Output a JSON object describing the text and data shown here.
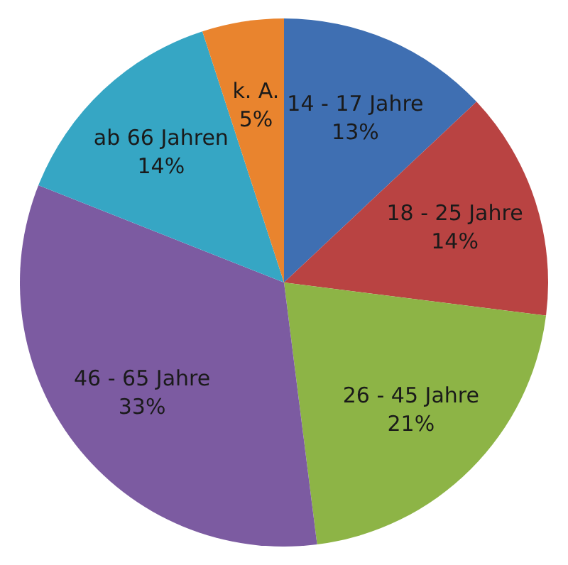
{
  "chart_data": {
    "type": "pie",
    "categories": [
      "14 - 17 Jahre",
      "18 - 25 Jahre",
      "26 - 45 Jahre",
      "46 - 65 Jahre",
      "ab 66 Jahren",
      "k. A."
    ],
    "values": [
      13,
      14,
      21,
      33,
      14,
      5
    ],
    "value_labels": [
      "13%",
      "14%",
      "21%",
      "33%",
      "14%",
      "5%"
    ],
    "colors": [
      "#3f6fb2",
      "#b94342",
      "#8db446",
      "#7c5ba1",
      "#36a6c4",
      "#e9842e"
    ],
    "legend": false
  }
}
